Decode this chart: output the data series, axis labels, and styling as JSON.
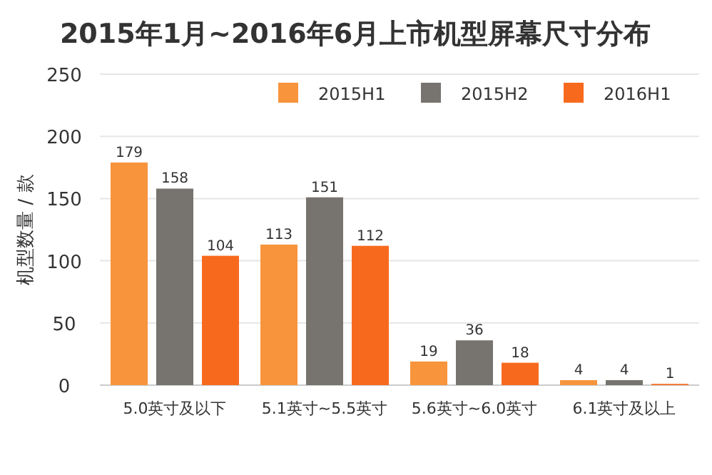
{
  "chart_data": {
    "type": "bar",
    "title": "2015年1月~2016年6月上市机型屏幕尺寸分布",
    "ylabel": "机型数量 / 款",
    "categories": [
      "5.0英寸及以下",
      "5.1英寸~5.5英寸",
      "5.6英寸~6.0英寸",
      "6.1英寸及以上"
    ],
    "series": [
      {
        "name": "2015H1",
        "color": "#f7943c",
        "values": [
          179,
          113,
          19,
          4
        ]
      },
      {
        "name": "2015H2",
        "color": "#77736e",
        "values": [
          158,
          151,
          36,
          4
        ]
      },
      {
        "name": "2016H1",
        "color": "#f76a1e",
        "values": [
          104,
          112,
          18,
          1
        ]
      }
    ],
    "ylim": [
      0,
      250
    ],
    "yticks": [
      0,
      50,
      100,
      150,
      200,
      250
    ],
    "grid": "y",
    "legend": "top right",
    "data_labels": true
  }
}
